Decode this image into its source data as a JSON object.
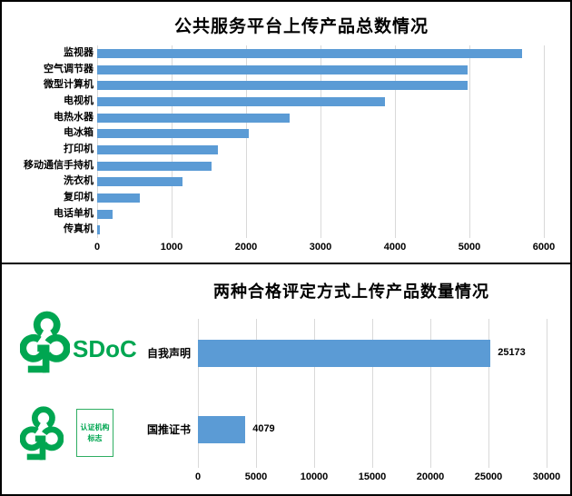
{
  "colors": {
    "bar": "#5B9BD5",
    "gridline": "#d9d9d9",
    "logo_green": "#00A651",
    "panel_border": "#000000",
    "text": "#000000"
  },
  "chart_data": [
    {
      "type": "bar",
      "orientation": "horizontal",
      "title": "公共服务平台上传产品总数情况",
      "categories": [
        "监视器",
        "空气调节器",
        "微型计算机",
        "电视机",
        "电热水器",
        "电冰箱",
        "打印机",
        "移动通信手持机",
        "洗衣机",
        "复印机",
        "电话单机",
        "传真机"
      ],
      "values": [
        5710,
        4975,
        4975,
        3870,
        2580,
        2040,
        1620,
        1540,
        1150,
        570,
        210,
        35
      ],
      "xlabel": "",
      "ylabel": "",
      "xlim": [
        0,
        6000
      ],
      "x_ticks": [
        0,
        1000,
        2000,
        3000,
        4000,
        5000,
        6000
      ],
      "grid": "vertical",
      "legend": "none",
      "data_labels": false,
      "bar_color": "#5B9BD5"
    },
    {
      "type": "bar",
      "orientation": "horizontal",
      "title": "两种合格评定方式上传产品数量情况",
      "categories": [
        "自我声明",
        "国推证书"
      ],
      "values": [
        25173,
        4079
      ],
      "data_label_texts": [
        "25173",
        "4079"
      ],
      "xlabel": "",
      "ylabel": "",
      "xlim": [
        0,
        30000
      ],
      "x_ticks": [
        0,
        5000,
        10000,
        15000,
        20000,
        25000,
        30000
      ],
      "grid": "vertical",
      "legend": "none",
      "data_labels": true,
      "bar_color": "#5B9BD5"
    }
  ],
  "logos": {
    "sdoc": {
      "icon": "cgp-tree-icon",
      "label": "SDoC"
    },
    "cert": {
      "icon": "cgp-tree-icon",
      "box_line1": "认证机构",
      "box_line2": "标志"
    }
  }
}
